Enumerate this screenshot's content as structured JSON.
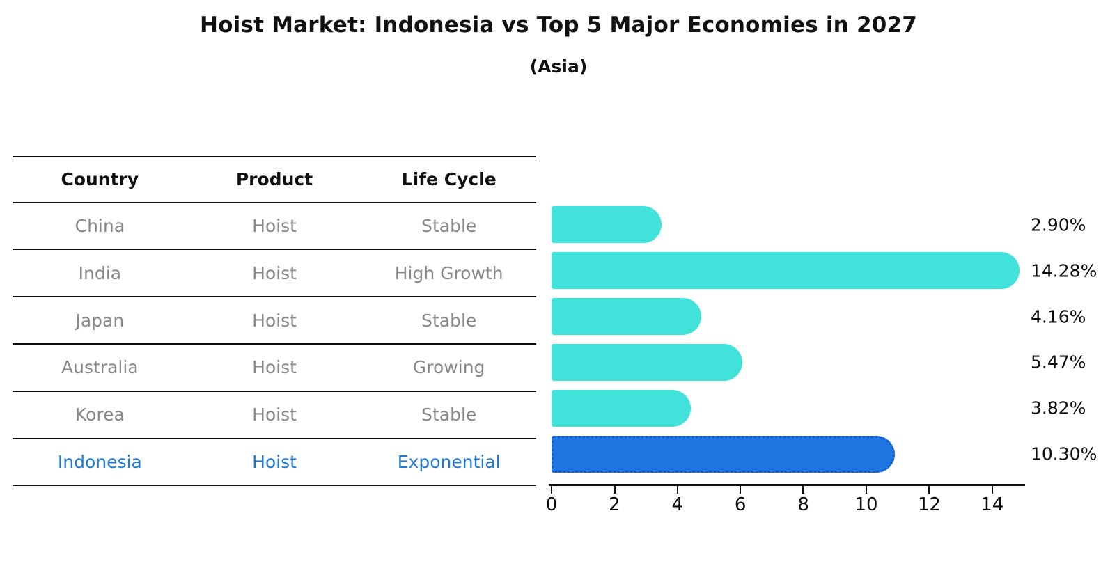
{
  "title": "Hoist Market: Indonesia vs Top 5 Major Economies in 2027",
  "subtitle": "(Asia)",
  "table": {
    "headers": [
      "Country",
      "Product",
      "Life Cycle"
    ],
    "rows": [
      {
        "country": "China",
        "product": "Hoist",
        "life_cycle": "Stable",
        "highlight": false
      },
      {
        "country": "India",
        "product": "Hoist",
        "life_cycle": "High Growth",
        "highlight": false
      },
      {
        "country": "Japan",
        "product": "Hoist",
        "life_cycle": "Stable",
        "highlight": false
      },
      {
        "country": "Australia",
        "product": "Hoist",
        "life_cycle": "Growing",
        "highlight": false
      },
      {
        "country": "Korea",
        "product": "Hoist",
        "life_cycle": "Stable",
        "highlight": false
      },
      {
        "country": "Indonesia",
        "product": "Hoist",
        "life_cycle": "Exponential",
        "highlight": true
      }
    ]
  },
  "chart_data": {
    "type": "bar",
    "orientation": "horizontal",
    "title": "Hoist Market: Indonesia vs Top 5 Major Economies in 2027",
    "subtitle": "(Asia)",
    "categories": [
      "China",
      "India",
      "Japan",
      "Australia",
      "Korea",
      "Indonesia"
    ],
    "values": [
      2.9,
      14.28,
      4.16,
      5.47,
      3.82,
      10.3
    ],
    "value_labels": [
      "2.90%",
      "14.28%",
      "4.16%",
      "5.47%",
      "3.82%",
      "10.30%"
    ],
    "xlim": [
      0,
      15
    ],
    "xticks": [
      0,
      2,
      4,
      6,
      8,
      10,
      12,
      14
    ],
    "grid": false,
    "legend": false,
    "highlight_index": 5,
    "bar_color": "#40E2DA",
    "highlight_bar_color": "#1D76E2",
    "highlight_border_color": "#1459C4",
    "highlight_text_color": "#1F7AD6"
  }
}
